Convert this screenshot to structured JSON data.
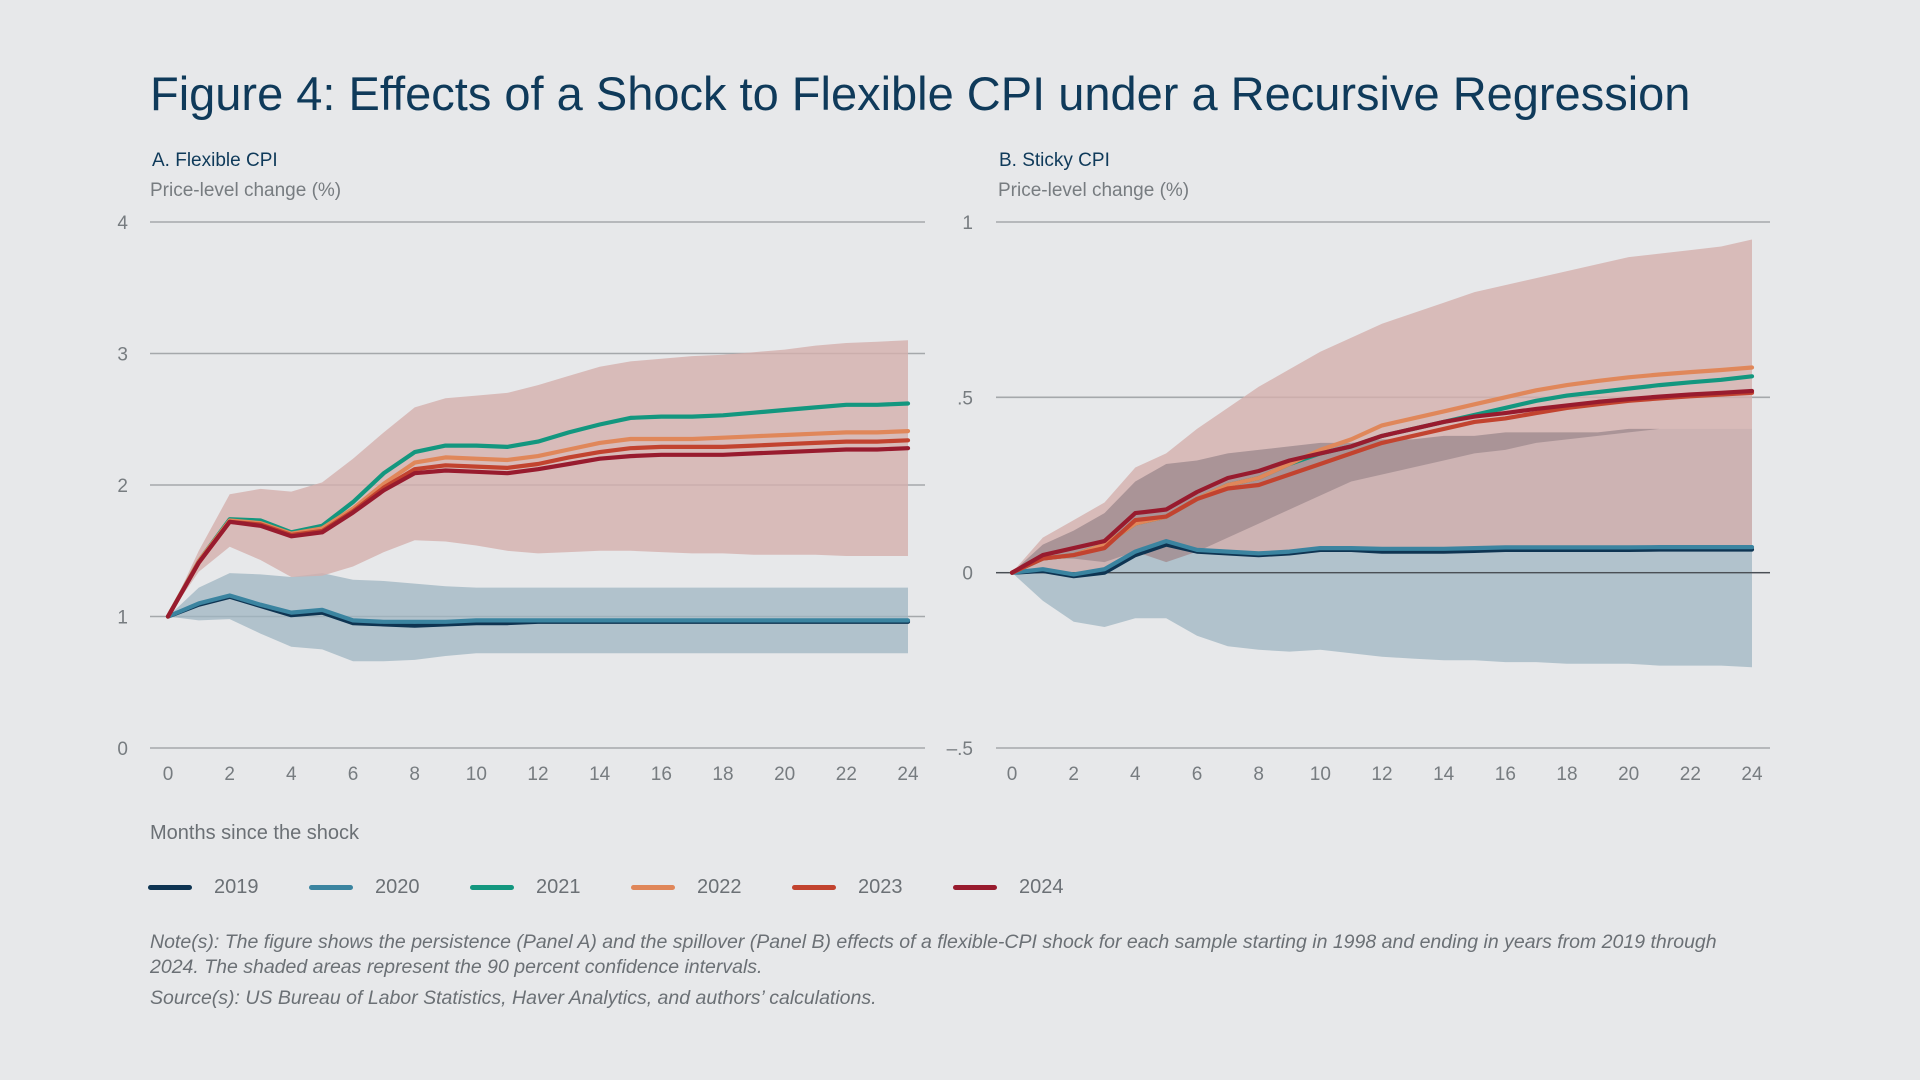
{
  "title": "Figure 4: Effects of a Shock to Flexible CPI under a Recursive Regression",
  "xlabel": "Months since the shock",
  "notes": "Note(s): The figure shows the persistence (Panel A) and the spillover (Panel B) effects of a flexible-CPI shock for each sample starting in 1998 and ending in years from 2019 through 2024. The shaded areas represent the 90 percent confidence intervals.",
  "source": "Source(s): US Bureau of Labor Statistics, Haver Analytics, and authors’ calculations.",
  "legend": [
    {
      "label": "2019",
      "color": "#0e3452"
    },
    {
      "label": "2020",
      "color": "#3b84a0"
    },
    {
      "label": "2021",
      "color": "#13977f"
    },
    {
      "label": "2022",
      "color": "#e0875a"
    },
    {
      "label": "2023",
      "color": "#c2432f"
    },
    {
      "label": "2024",
      "color": "#981b2e"
    }
  ],
  "chart_data": [
    {
      "type": "line",
      "title": "A. Flexible CPI",
      "ylabel": "Price-level change (%)",
      "xlabel": "Months since the shock",
      "x": [
        0,
        1,
        2,
        3,
        4,
        5,
        6,
        7,
        8,
        9,
        10,
        11,
        12,
        13,
        14,
        15,
        16,
        17,
        18,
        19,
        20,
        21,
        22,
        23,
        24
      ],
      "xticks": [
        0,
        2,
        4,
        6,
        8,
        10,
        12,
        14,
        16,
        18,
        20,
        22,
        24
      ],
      "xticklabels": [
        "0",
        "2",
        "4",
        "6",
        "8",
        "10",
        "12",
        "14",
        "16",
        "18",
        "20",
        "22",
        "24"
      ],
      "ylim": [
        0,
        4
      ],
      "yticks": [
        0,
        1,
        2,
        3,
        4
      ],
      "yticklabels": [
        "0",
        "1",
        "2",
        "3",
        "4"
      ],
      "grid": true,
      "bands": [
        {
          "color": "#9fb6c2",
          "opacity": 0.75,
          "upper": [
            1.0,
            1.22,
            1.33,
            1.32,
            1.3,
            1.33,
            1.28,
            1.27,
            1.25,
            1.23,
            1.22,
            1.22,
            1.22,
            1.22,
            1.22,
            1.22,
            1.22,
            1.22,
            1.22,
            1.22,
            1.22,
            1.22,
            1.22,
            1.22,
            1.22
          ],
          "lower": [
            1.0,
            0.97,
            0.98,
            0.87,
            0.77,
            0.75,
            0.66,
            0.66,
            0.67,
            0.7,
            0.72,
            0.72,
            0.72,
            0.72,
            0.72,
            0.72,
            0.72,
            0.72,
            0.72,
            0.72,
            0.72,
            0.72,
            0.72,
            0.72,
            0.72
          ]
        },
        {
          "color": "#d5afac",
          "opacity": 0.8,
          "upper": [
            1.0,
            1.5,
            1.93,
            1.97,
            1.95,
            2.02,
            2.2,
            2.4,
            2.59,
            2.66,
            2.68,
            2.7,
            2.76,
            2.83,
            2.9,
            2.94,
            2.96,
            2.98,
            2.99,
            3.01,
            3.03,
            3.06,
            3.08,
            3.09,
            3.1
          ],
          "lower": [
            1.0,
            1.34,
            1.53,
            1.43,
            1.3,
            1.31,
            1.38,
            1.49,
            1.58,
            1.57,
            1.54,
            1.5,
            1.48,
            1.49,
            1.5,
            1.5,
            1.49,
            1.48,
            1.48,
            1.47,
            1.47,
            1.47,
            1.46,
            1.46,
            1.46
          ]
        }
      ],
      "series": [
        {
          "name": "2019",
          "color": "#0e3452",
          "values": [
            1.0,
            1.09,
            1.15,
            1.08,
            1.01,
            1.03,
            0.95,
            0.94,
            0.93,
            0.94,
            0.95,
            0.95,
            0.96,
            0.96,
            0.96,
            0.96,
            0.96,
            0.96,
            0.96,
            0.96,
            0.96,
            0.96,
            0.96,
            0.96,
            0.96
          ]
        },
        {
          "name": "2020",
          "color": "#3b84a0",
          "values": [
            1.0,
            1.1,
            1.16,
            1.09,
            1.03,
            1.05,
            0.97,
            0.96,
            0.96,
            0.96,
            0.97,
            0.97,
            0.97,
            0.97,
            0.97,
            0.97,
            0.97,
            0.97,
            0.97,
            0.97,
            0.97,
            0.97,
            0.97,
            0.97,
            0.97
          ]
        },
        {
          "name": "2021",
          "color": "#13977f",
          "values": [
            1.0,
            1.42,
            1.74,
            1.73,
            1.64,
            1.69,
            1.87,
            2.09,
            2.25,
            2.3,
            2.3,
            2.29,
            2.33,
            2.4,
            2.46,
            2.51,
            2.52,
            2.52,
            2.53,
            2.55,
            2.57,
            2.59,
            2.61,
            2.61,
            2.62
          ]
        },
        {
          "name": "2022",
          "color": "#e0875a",
          "values": [
            1.0,
            1.42,
            1.73,
            1.71,
            1.63,
            1.67,
            1.82,
            2.01,
            2.17,
            2.21,
            2.2,
            2.19,
            2.22,
            2.27,
            2.32,
            2.35,
            2.35,
            2.35,
            2.36,
            2.37,
            2.38,
            2.39,
            2.4,
            2.4,
            2.41
          ]
        },
        {
          "name": "2023",
          "color": "#c2432f",
          "values": [
            1.0,
            1.41,
            1.72,
            1.7,
            1.62,
            1.65,
            1.8,
            1.98,
            2.12,
            2.15,
            2.14,
            2.13,
            2.16,
            2.21,
            2.25,
            2.28,
            2.29,
            2.29,
            2.29,
            2.3,
            2.31,
            2.32,
            2.33,
            2.33,
            2.34
          ]
        },
        {
          "name": "2024",
          "color": "#981b2e",
          "values": [
            1.0,
            1.41,
            1.72,
            1.69,
            1.61,
            1.64,
            1.79,
            1.96,
            2.09,
            2.11,
            2.1,
            2.09,
            2.12,
            2.16,
            2.2,
            2.22,
            2.23,
            2.23,
            2.23,
            2.24,
            2.25,
            2.26,
            2.27,
            2.27,
            2.28
          ]
        }
      ]
    },
    {
      "type": "line",
      "title": "B. Sticky CPI",
      "ylabel": "Price-level change (%)",
      "xlabel": "Months since the shock",
      "x": [
        0,
        1,
        2,
        3,
        4,
        5,
        6,
        7,
        8,
        9,
        10,
        11,
        12,
        13,
        14,
        15,
        16,
        17,
        18,
        19,
        20,
        21,
        22,
        23,
        24
      ],
      "xticks": [
        0,
        2,
        4,
        6,
        8,
        10,
        12,
        14,
        16,
        18,
        20,
        22,
        24
      ],
      "xticklabels": [
        "0",
        "2",
        "4",
        "6",
        "8",
        "10",
        "12",
        "14",
        "16",
        "18",
        "20",
        "22",
        "24"
      ],
      "ylim": [
        -0.5,
        1
      ],
      "yticks": [
        -0.5,
        0,
        0.5,
        1
      ],
      "yticklabels": [
        "–.5",
        "0",
        ".5",
        "1"
      ],
      "zeroline": true,
      "grid": true,
      "bands": [
        {
          "color": "#9fb6c2",
          "opacity": 0.75,
          "upper": [
            0.0,
            0.08,
            0.12,
            0.17,
            0.26,
            0.31,
            0.32,
            0.34,
            0.35,
            0.36,
            0.37,
            0.37,
            0.38,
            0.38,
            0.39,
            0.39,
            0.4,
            0.4,
            0.4,
            0.4,
            0.41,
            0.41,
            0.41,
            0.41,
            0.41
          ],
          "lower": [
            0.0,
            -0.08,
            -0.14,
            -0.155,
            -0.13,
            -0.13,
            -0.18,
            -0.21,
            -0.22,
            -0.225,
            -0.22,
            -0.23,
            -0.24,
            -0.245,
            -0.25,
            -0.25,
            -0.255,
            -0.255,
            -0.26,
            -0.26,
            -0.26,
            -0.265,
            -0.265,
            -0.265,
            -0.27
          ]
        },
        {
          "color": "#d5afac",
          "opacity": 0.8,
          "upper": [
            0.0,
            0.1,
            0.15,
            0.2,
            0.3,
            0.34,
            0.41,
            0.47,
            0.53,
            0.58,
            0.63,
            0.67,
            0.71,
            0.74,
            0.77,
            0.8,
            0.82,
            0.84,
            0.86,
            0.88,
            0.9,
            0.91,
            0.92,
            0.93,
            0.95
          ]
        },
        {
          "color": "#a38e92",
          "opacity": 0.85,
          "upper": [
            0.0,
            0.08,
            0.12,
            0.17,
            0.26,
            0.31,
            0.32,
            0.34,
            0.35,
            0.36,
            0.37,
            0.37,
            0.38,
            0.38,
            0.39,
            0.39,
            0.4,
            0.4,
            0.4,
            0.4,
            0.41,
            0.41,
            0.41,
            0.41,
            0.41
          ],
          "lower": [
            0.0,
            0.04,
            0.04,
            0.03,
            0.06,
            0.03,
            0.06,
            0.1,
            0.14,
            0.18,
            0.22,
            0.26,
            0.28,
            0.3,
            0.32,
            0.34,
            0.35,
            0.37,
            0.38,
            0.39,
            0.4,
            0.41,
            0.41,
            0.41,
            0.41
          ]
        }
      ],
      "series": [
        {
          "name": "2019",
          "color": "#0e3452",
          "values": [
            0.0,
            0.005,
            -0.01,
            0.0,
            0.05,
            0.08,
            0.06,
            0.055,
            0.05,
            0.055,
            0.065,
            0.065,
            0.06,
            0.06,
            0.06,
            0.062,
            0.065,
            0.065,
            0.065,
            0.065,
            0.065,
            0.066,
            0.066,
            0.066,
            0.066
          ]
        },
        {
          "name": "2020",
          "color": "#3b84a0",
          "values": [
            0.0,
            0.01,
            -0.005,
            0.01,
            0.06,
            0.09,
            0.065,
            0.06,
            0.055,
            0.06,
            0.07,
            0.07,
            0.068,
            0.068,
            0.068,
            0.07,
            0.072,
            0.072,
            0.072,
            0.072,
            0.072,
            0.073,
            0.073,
            0.073,
            0.073
          ]
        },
        {
          "name": "2021",
          "color": "#13977f",
          "values": [
            0.0,
            0.04,
            0.05,
            0.08,
            0.14,
            0.16,
            0.21,
            0.25,
            0.27,
            0.31,
            0.34,
            0.36,
            0.39,
            0.41,
            0.43,
            0.45,
            0.47,
            0.49,
            0.505,
            0.515,
            0.525,
            0.535,
            0.543,
            0.55,
            0.56
          ]
        },
        {
          "name": "2022",
          "color": "#e0875a",
          "values": [
            0.0,
            0.04,
            0.05,
            0.08,
            0.14,
            0.16,
            0.21,
            0.25,
            0.27,
            0.31,
            0.35,
            0.38,
            0.42,
            0.44,
            0.46,
            0.48,
            0.5,
            0.52,
            0.535,
            0.547,
            0.557,
            0.565,
            0.572,
            0.578,
            0.585
          ]
        },
        {
          "name": "2023",
          "color": "#c2432f",
          "values": [
            0.0,
            0.04,
            0.05,
            0.07,
            0.15,
            0.16,
            0.21,
            0.24,
            0.25,
            0.28,
            0.31,
            0.34,
            0.37,
            0.39,
            0.41,
            0.43,
            0.44,
            0.455,
            0.47,
            0.48,
            0.49,
            0.497,
            0.503,
            0.508,
            0.513
          ]
        },
        {
          "name": "2024",
          "color": "#981b2e",
          "values": [
            0.0,
            0.05,
            0.07,
            0.09,
            0.17,
            0.18,
            0.23,
            0.27,
            0.29,
            0.32,
            0.34,
            0.36,
            0.39,
            0.41,
            0.43,
            0.445,
            0.455,
            0.467,
            0.477,
            0.487,
            0.495,
            0.502,
            0.508,
            0.513,
            0.518
          ]
        }
      ]
    }
  ]
}
